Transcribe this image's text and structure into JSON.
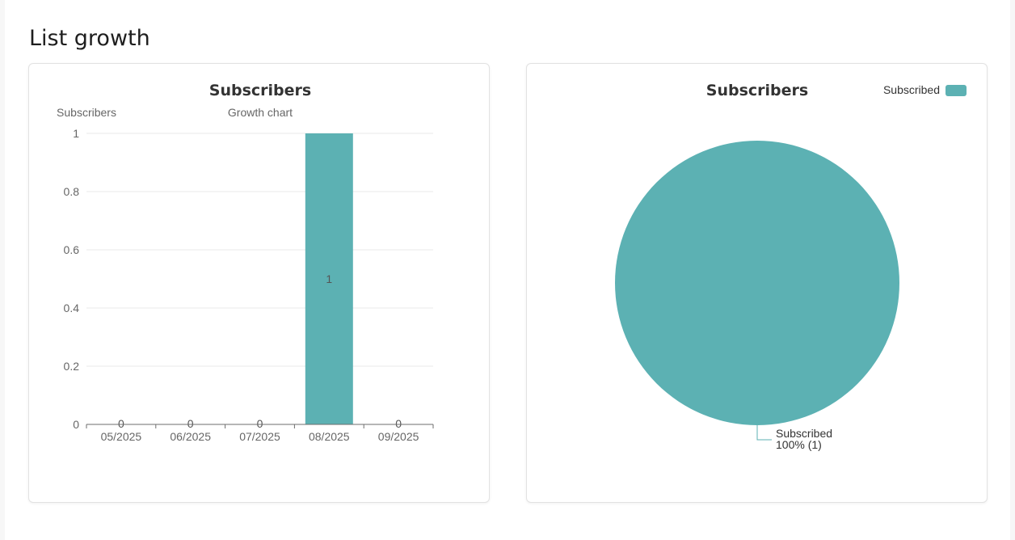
{
  "page": {
    "title": "List growth"
  },
  "colors": {
    "accent": "#5cb1b3",
    "grid": "#e8e8e8",
    "axis": "#6e6e6e"
  },
  "chart_data": [
    {
      "type": "bar",
      "title": "Subscribers",
      "ylabel": "Subscribers",
      "subtitle": "Growth chart",
      "categories": [
        "05/2025",
        "06/2025",
        "07/2025",
        "08/2025",
        "09/2025"
      ],
      "values": [
        0,
        0,
        0,
        1,
        0
      ],
      "data_labels": [
        "0",
        "0",
        "0",
        "1",
        "0"
      ],
      "yticks": [
        "0",
        "0.2",
        "0.4",
        "0.6",
        "0.8",
        "1"
      ],
      "ylim": [
        0,
        1
      ],
      "grid": true,
      "legend": "none"
    },
    {
      "type": "pie",
      "title": "Subscribers",
      "slices": [
        {
          "name": "Subscribed",
          "value": 1,
          "percent": "100%",
          "label": "100% (1)"
        }
      ],
      "legend": "top-right"
    }
  ]
}
